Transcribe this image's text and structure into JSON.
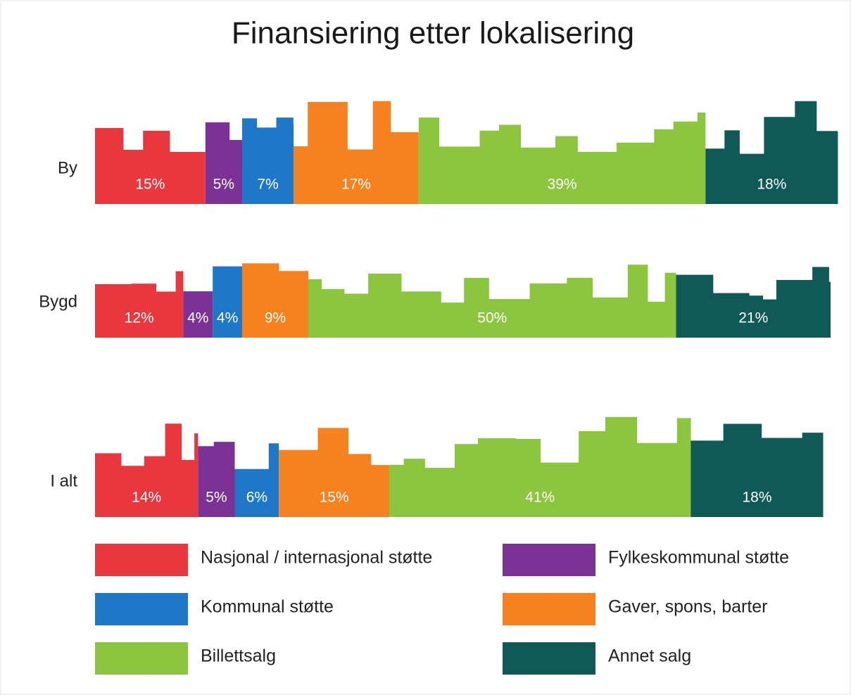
{
  "chart_data": {
    "type": "bar",
    "orientation": "horizontal",
    "stacked": true,
    "title": "Finansiering etter lokalisering",
    "categories": [
      "By",
      "Bygd",
      "I alt"
    ],
    "series": [
      {
        "name": "Nasjonal / internasjonal støtte",
        "color": "#e8383d",
        "values": [
          15,
          12,
          14
        ],
        "value_labels": [
          "15%",
          "12%",
          "14%"
        ]
      },
      {
        "name": "Fylkeskommunal støtte",
        "color": "#7b3294",
        "values": [
          5,
          4,
          5
        ],
        "value_labels": [
          "5%",
          "4%",
          "5%"
        ]
      },
      {
        "name": "Kommunal støtte",
        "color": "#1f77c8",
        "values": [
          7,
          4,
          6
        ],
        "value_labels": [
          "7%",
          "4%",
          "6%"
        ]
      },
      {
        "name": "Gaver, spons, barter",
        "color": "#f5821f",
        "values": [
          17,
          9,
          15
        ],
        "value_labels": [
          "17%",
          "9%",
          "15%"
        ]
      },
      {
        "name": "Billettsalg",
        "color": "#8cc63f",
        "values": [
          39,
          50,
          41
        ],
        "value_labels": [
          "39%",
          "50%",
          "41%"
        ]
      },
      {
        "name": "Annet salg",
        "color": "#0f5a57",
        "values": [
          18,
          21,
          18
        ],
        "value_labels": [
          "18%",
          "21%",
          "18%"
        ]
      }
    ]
  }
}
